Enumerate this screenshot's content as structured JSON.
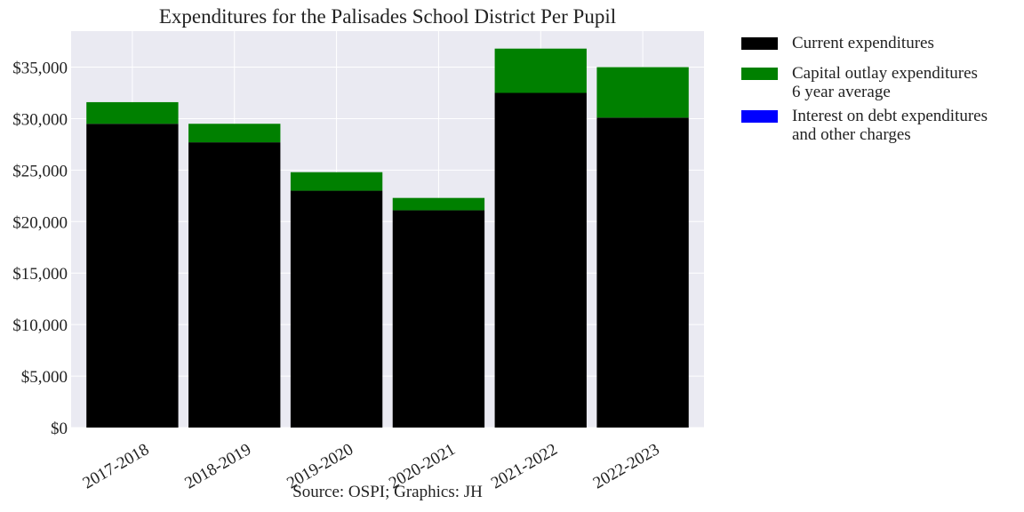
{
  "chart_data": {
    "type": "bar",
    "stacked": true,
    "title": "Expenditures for the Palisades School District Per Pupil",
    "categories": [
      "2017-2018",
      "2018-2019",
      "2019-2020",
      "2020-2021",
      "2021-2022",
      "2022-2023"
    ],
    "series": [
      {
        "name": "Current expenditures",
        "color": "#000000",
        "values": [
          29500,
          27700,
          23000,
          21100,
          32500,
          30100
        ]
      },
      {
        "name": "Capital outlay expenditures\n6 year average",
        "color": "#008000",
        "values": [
          2100,
          1800,
          1800,
          1200,
          4300,
          4900
        ]
      },
      {
        "name": "Interest on debt expenditures\nand other charges",
        "color": "#0000ff",
        "values": [
          0,
          0,
          0,
          0,
          0,
          0
        ]
      }
    ],
    "xlabel": "",
    "ylabel": "",
    "ylim": [
      0,
      38500
    ],
    "yticks": [
      0,
      5000,
      10000,
      15000,
      20000,
      25000,
      30000,
      35000
    ],
    "ytick_labels": [
      "$0",
      "$5,000",
      "$10,000",
      "$15,000",
      "$20,000",
      "$25,000",
      "$30,000",
      "$35,000"
    ],
    "grid": true,
    "legend_position": "outside-right-top",
    "source": "Source: OSPI; Graphics: JH",
    "colors": {
      "plot_background": "#eaeaf2",
      "grid": "#ffffff"
    }
  }
}
